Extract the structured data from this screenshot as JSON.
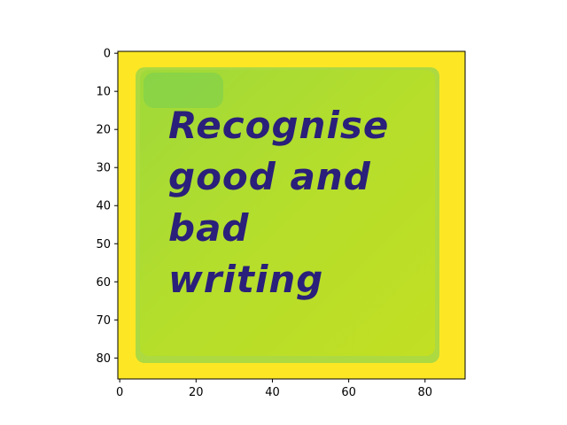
{
  "chart_data": {
    "type": "heatmap",
    "title": "",
    "xlabel": "",
    "ylabel": "",
    "colormap": "viridis",
    "image_shape": [
      86,
      91
    ],
    "xlim": [
      -0.5,
      90.5
    ],
    "ylim": [
      85.5,
      -0.5
    ],
    "x_ticks": [
      0,
      20,
      40,
      60,
      80
    ],
    "y_ticks": [
      0,
      10,
      20,
      30,
      40,
      50,
      60,
      70,
      80
    ],
    "x_tick_labels": [
      "0",
      "20",
      "40",
      "60",
      "80"
    ],
    "y_tick_labels": [
      "0",
      "10",
      "20",
      "30",
      "40",
      "50",
      "60",
      "70",
      "80"
    ],
    "image_text_lines": [
      "Recognise",
      "good and",
      "bad",
      "writing"
    ]
  },
  "colors": {
    "border_yellow": "#fde725",
    "note_green": "#b5de2b",
    "note_edge_green": "#5ec962",
    "text_purple": "#2a1f7a"
  }
}
